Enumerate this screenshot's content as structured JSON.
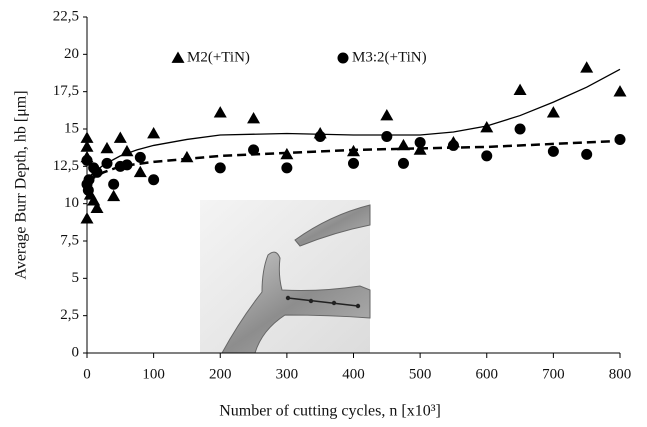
{
  "chart_data": {
    "type": "scatter",
    "x_label": "Number of cutting cycles, n [x10³]",
    "y_label": "Average Burr Depth, hb [μm]",
    "xlim": [
      0,
      800
    ],
    "xticks": [
      0,
      100,
      200,
      300,
      400,
      500,
      600,
      700,
      800
    ],
    "ylim": [
      0,
      22.5
    ],
    "yticks": [
      0,
      {
        "value": 2.5,
        "label": "2,5"
      },
      5,
      {
        "value": 7.5,
        "label": "7,5"
      },
      10,
      {
        "value": 12.5,
        "label": "12,5"
      },
      15,
      {
        "value": 17.5,
        "label": "17,5"
      },
      20,
      {
        "value": 22.5,
        "label": "22,5"
      }
    ],
    "grid": false,
    "series": [
      {
        "name": "M2(+TiN)",
        "marker": "triangle",
        "color": "#000000",
        "line_style": "solid",
        "x": [
          0,
          0,
          0,
          0,
          5,
          10,
          15,
          30,
          40,
          50,
          60,
          80,
          100,
          150,
          200,
          250,
          300,
          350,
          400,
          450,
          475,
          500,
          550,
          600,
          650,
          700,
          750,
          800
        ],
        "values": [
          14.4,
          13.8,
          13.1,
          9.0,
          10.6,
          10.2,
          9.7,
          13.7,
          10.5,
          14.4,
          13.5,
          12.1,
          14.7,
          13.1,
          16.1,
          15.7,
          13.3,
          14.7,
          13.5,
          15.9,
          13.9,
          13.6,
          14.1,
          15.1,
          17.6,
          16.1,
          19.1,
          17.5
        ],
        "fit": {
          "x": [
            0,
            25,
            50,
            75,
            100,
            150,
            200,
            300,
            400,
            500,
            550,
            600,
            650,
            700,
            750,
            800
          ],
          "values": [
            11.7,
            12.6,
            13.2,
            13.6,
            13.9,
            14.3,
            14.6,
            14.7,
            14.6,
            14.6,
            14.8,
            15.2,
            15.9,
            16.8,
            17.8,
            19.0
          ]
        }
      },
      {
        "name": "M3:2(+TiN)",
        "marker": "circle",
        "color": "#000000",
        "line_style": "dashed",
        "x": [
          0,
          0,
          2,
          3,
          10,
          15,
          30,
          40,
          50,
          60,
          80,
          100,
          200,
          250,
          300,
          350,
          400,
          450,
          475,
          500,
          550,
          600,
          650,
          700,
          750,
          800
        ],
        "values": [
          12.9,
          11.3,
          10.9,
          11.6,
          12.4,
          12.1,
          12.7,
          11.3,
          12.5,
          12.6,
          13.1,
          11.6,
          12.4,
          13.6,
          12.4,
          14.5,
          12.7,
          14.5,
          12.7,
          14.1,
          13.9,
          13.2,
          15.0,
          13.5,
          13.3,
          14.3
        ],
        "fit": {
          "x": [
            0,
            25,
            50,
            100,
            200,
            300,
            400,
            500,
            600,
            700,
            800
          ],
          "values": [
            11.5,
            12.1,
            12.5,
            12.8,
            13.2,
            13.4,
            13.6,
            13.7,
            13.8,
            14.0,
            14.2
          ]
        }
      }
    ]
  }
}
